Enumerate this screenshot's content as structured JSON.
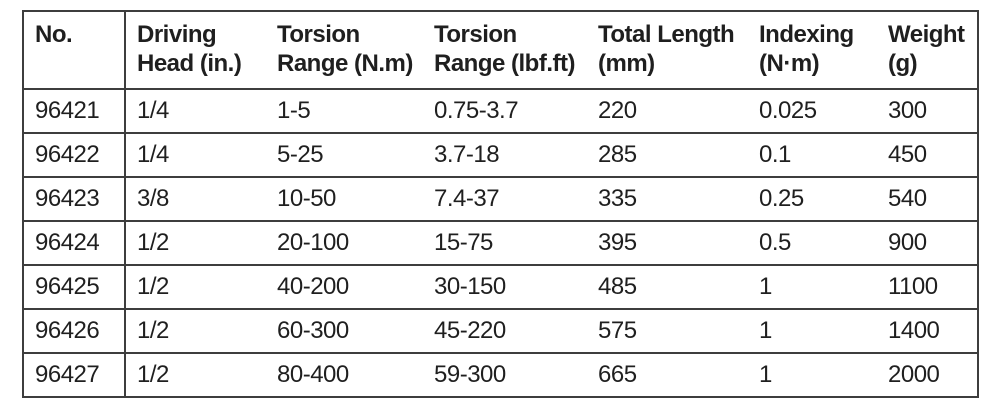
{
  "table": {
    "title": "torque-wrench-specifications",
    "columns": [
      {
        "key": "no",
        "label": "No."
      },
      {
        "key": "driving_head",
        "label": "Driving\nHead (in.)"
      },
      {
        "key": "torsion_nm",
        "label": "Torsion\nRange (N.m)"
      },
      {
        "key": "torsion_lbfft",
        "label": "Torsion\nRange (lbf.ft)"
      },
      {
        "key": "total_length",
        "label": "Total Length\n(mm)"
      },
      {
        "key": "indexing",
        "label": "Indexing\n(N·m)"
      },
      {
        "key": "weight",
        "label": "Weight\n(g)"
      }
    ],
    "rows": [
      [
        "96421",
        "1/4",
        "1-5",
        "0.75-3.7",
        "220",
        "0.025",
        "300"
      ],
      [
        "96422",
        "1/4",
        "5-25",
        "3.7-18",
        "285",
        "0.1",
        "450"
      ],
      [
        "96423",
        "3/8",
        "10-50",
        "7.4-37",
        "335",
        "0.25",
        "540"
      ],
      [
        "96424",
        "1/2",
        "20-100",
        "15-75",
        "395",
        "0.5",
        "900"
      ],
      [
        "96425",
        "1/2",
        "40-200",
        "30-150",
        "485",
        "1",
        "1100"
      ],
      [
        "96426",
        "1/2",
        "60-300",
        "45-220",
        "575",
        "1",
        "1400"
      ],
      [
        "96427",
        "1/2",
        "80-400",
        "59-300",
        "665",
        "1",
        "2000"
      ]
    ]
  },
  "colors": {
    "text": "#1f1f1f",
    "border": "#3d3d3d",
    "background": "#ffffff"
  }
}
